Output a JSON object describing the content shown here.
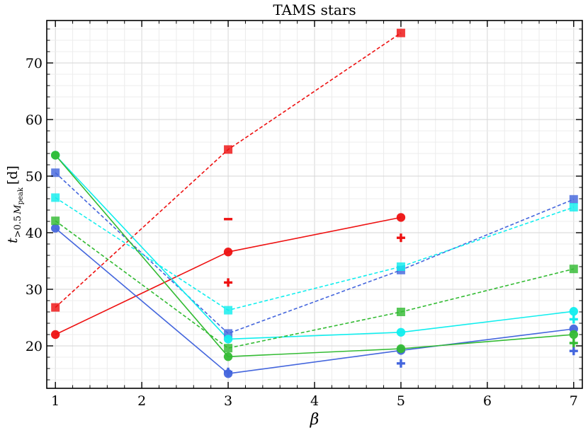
{
  "chart_data": {
    "type": "line",
    "title": "TAMS stars",
    "xlabel": "β",
    "ylabel": "t_{>0.5 M_peak} [d]",
    "ylabel_parts": {
      "t": "t",
      "sub1": ">0.5",
      "M": "M",
      "sub2": "peak",
      "unit": "[d]"
    },
    "xlim": [
      0.9,
      7.1
    ],
    "ylim": [
      12.5,
      77.5
    ],
    "xticks": [
      1,
      2,
      3,
      4,
      5,
      6,
      7
    ],
    "yticks": [
      20,
      30,
      40,
      50,
      60,
      70
    ],
    "grid": true,
    "colors": {
      "red": "#ee1111",
      "blue": "#4466dd",
      "cyan": "#11eeee",
      "green": "#33bb33"
    },
    "series": [
      {
        "color": "#ee1111",
        "style": "dashed",
        "marker": "square",
        "x": [
          1,
          3,
          5
        ],
        "y": [
          26.8,
          54.7,
          75.3
        ]
      },
      {
        "color": "#ee1111",
        "style": "solid",
        "marker": "circle",
        "x": [
          1,
          3,
          5
        ],
        "y": [
          22.0,
          36.6,
          42.7
        ]
      },
      {
        "color": "#4466dd",
        "style": "dashed",
        "marker": "square",
        "x": [
          1,
          3,
          5,
          7
        ],
        "y": [
          50.6,
          22.2,
          33.4,
          45.9
        ]
      },
      {
        "color": "#4466dd",
        "style": "solid",
        "marker": "circle",
        "x": [
          1,
          3,
          5,
          7
        ],
        "y": [
          40.8,
          15.1,
          19.2,
          23.0
        ]
      },
      {
        "color": "#11eeee",
        "style": "dashed",
        "marker": "square",
        "x": [
          1,
          3,
          5,
          7
        ],
        "y": [
          46.2,
          26.3,
          34.0,
          44.5
        ]
      },
      {
        "color": "#11eeee",
        "style": "solid",
        "marker": "circle",
        "x": [
          1,
          3,
          5,
          7
        ],
        "y": [
          53.7,
          21.2,
          22.4,
          26.1
        ]
      },
      {
        "color": "#33bb33",
        "style": "dashed",
        "marker": "square",
        "x": [
          1,
          3,
          5,
          7
        ],
        "y": [
          42.1,
          19.6,
          26.0,
          33.6
        ]
      },
      {
        "color": "#33bb33",
        "style": "solid",
        "marker": "circle",
        "x": [
          1,
          3,
          5,
          7
        ],
        "y": [
          53.7,
          18.1,
          19.5,
          22.0
        ]
      }
    ],
    "extra_markers": [
      {
        "color": "#ee1111",
        "marker": "minus",
        "x": 3,
        "y": 42.4
      },
      {
        "color": "#ee1111",
        "marker": "plus",
        "x": 3,
        "y": 31.2
      },
      {
        "color": "#ee1111",
        "marker": "plus",
        "x": 5,
        "y": 39.1
      },
      {
        "color": "#4466dd",
        "marker": "plus",
        "x": 3,
        "y": 15.4
      },
      {
        "color": "#4466dd",
        "marker": "plus",
        "x": 5,
        "y": 16.9
      },
      {
        "color": "#4466dd",
        "marker": "plus",
        "x": 7,
        "y": 19.1
      },
      {
        "color": "#11eeee",
        "marker": "plus",
        "x": 7,
        "y": 24.7
      },
      {
        "color": "#33bb33",
        "marker": "plus",
        "x": 7,
        "y": 20.5
      }
    ]
  }
}
